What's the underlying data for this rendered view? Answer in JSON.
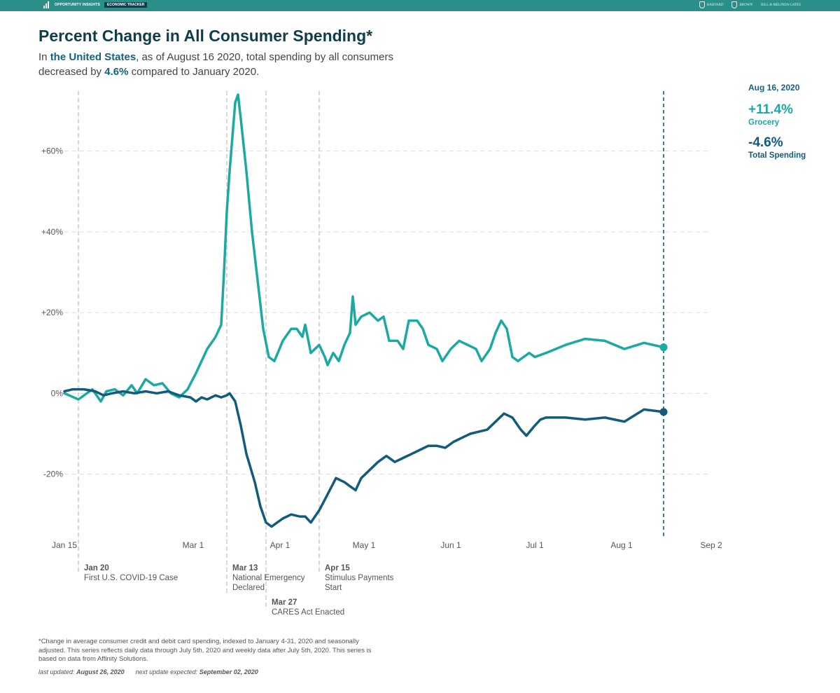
{
  "header": {
    "brand_name": "OPPORTUNITY INSIGHTS",
    "brand_tag": "ECONOMIC TRACKER",
    "partners": [
      "HARVARD",
      "BROWN",
      "BILL & MELINDA GATES"
    ]
  },
  "title": "Percent Change in All Consumer Spending*",
  "subtitle": {
    "p1": "In ",
    "location": "the United States",
    "p2": ", as of August 16 2020, total spending by all consumers decreased by ",
    "value": "4.6%",
    "p3": " compared to January 2020."
  },
  "side_panel": {
    "date": "Aug 16, 2020",
    "grocery_value": "+11.4%",
    "grocery_label": "Grocery",
    "total_value": "-4.6%",
    "total_label": "Total Spending"
  },
  "events": [
    {
      "date": "Jan 20",
      "label": "First U.S. COVID-19 Case"
    },
    {
      "date": "Mar 13",
      "label": "National Emergency\nDeclared"
    },
    {
      "date": "Mar 27",
      "label": "CARES Act Enacted"
    },
    {
      "date": "Apr 15",
      "label": "Stimulus Payments\nStart"
    }
  ],
  "footnote": "*Change in average consumer credit and debit card spending, indexed to January 4-31, 2020 and seasonally adjusted. This series reflects daily data through July 5th, 2020 and weekly data after July 5th, 2020. This series is based on data from Affinity Solutions.",
  "updates": {
    "last_label": "last updated:",
    "last_date": "August 26, 2020",
    "next_label": "next update expected:",
    "next_date": "September 02, 2020"
  },
  "colors": {
    "grocery": "#1baaa2",
    "total": "#125b7c",
    "brand_bar": "#2a8f89",
    "title": "#0f3d4c"
  },
  "chart_data": {
    "type": "line",
    "x_axis": {
      "start": "2020-01-15",
      "end": "2020-09-02",
      "ticks": [
        "2020-01-15",
        "2020-03-01",
        "2020-04-01",
        "2020-05-01",
        "2020-06-01",
        "2020-07-01",
        "2020-08-01",
        "2020-09-02"
      ],
      "tick_labels": [
        "Jan 15",
        "Mar 1",
        "Apr 1",
        "May 1",
        "Jun 1",
        "Jul 1",
        "Aug 1",
        "Sep 2"
      ]
    },
    "y_axis": {
      "range": [
        -35,
        74
      ],
      "ticks": [
        60,
        40,
        20,
        0,
        -20
      ],
      "tick_labels": [
        "+60%",
        "+40%",
        "+20%",
        "0%",
        "-20%"
      ]
    },
    "grid": "horizontal-dashed",
    "event_lines": [
      "2020-01-20",
      "2020-03-13",
      "2020-03-27",
      "2020-04-15"
    ],
    "marker_line": "2020-08-16",
    "series": [
      {
        "name": "Grocery",
        "color": "#1baaa2",
        "points": [
          [
            "2020-01-15",
            0
          ],
          [
            "2020-01-20",
            -1.5
          ],
          [
            "2020-01-25",
            1
          ],
          [
            "2020-01-28",
            -2
          ],
          [
            "2020-01-30",
            0.5
          ],
          [
            "2020-02-02",
            1
          ],
          [
            "2020-02-05",
            -0.5
          ],
          [
            "2020-02-08",
            2
          ],
          [
            "2020-02-10",
            0
          ],
          [
            "2020-02-13",
            3.5
          ],
          [
            "2020-02-16",
            2
          ],
          [
            "2020-02-19",
            2.5
          ],
          [
            "2020-02-22",
            0
          ],
          [
            "2020-02-25",
            -1
          ],
          [
            "2020-02-28",
            1
          ],
          [
            "2020-03-02",
            5
          ],
          [
            "2020-03-04",
            8
          ],
          [
            "2020-03-06",
            11
          ],
          [
            "2020-03-09",
            14
          ],
          [
            "2020-03-11",
            17
          ],
          [
            "2020-03-12",
            30
          ],
          [
            "2020-03-13",
            45
          ],
          [
            "2020-03-14",
            55
          ],
          [
            "2020-03-16",
            72
          ],
          [
            "2020-03-17",
            74
          ],
          [
            "2020-03-18",
            68
          ],
          [
            "2020-03-20",
            55
          ],
          [
            "2020-03-22",
            40
          ],
          [
            "2020-03-24",
            28
          ],
          [
            "2020-03-26",
            16
          ],
          [
            "2020-03-28",
            9
          ],
          [
            "2020-03-30",
            8
          ],
          [
            "2020-04-02",
            13
          ],
          [
            "2020-04-05",
            16
          ],
          [
            "2020-04-07",
            16
          ],
          [
            "2020-04-09",
            14
          ],
          [
            "2020-04-10",
            17
          ],
          [
            "2020-04-12",
            10
          ],
          [
            "2020-04-15",
            12
          ],
          [
            "2020-04-17",
            9
          ],
          [
            "2020-04-18",
            7
          ],
          [
            "2020-04-20",
            10
          ],
          [
            "2020-04-22",
            8
          ],
          [
            "2020-04-24",
            12
          ],
          [
            "2020-04-26",
            15
          ],
          [
            "2020-04-27",
            24
          ],
          [
            "2020-04-28",
            17
          ],
          [
            "2020-04-30",
            19
          ],
          [
            "2020-05-03",
            20
          ],
          [
            "2020-05-06",
            18
          ],
          [
            "2020-05-08",
            19
          ],
          [
            "2020-05-10",
            13
          ],
          [
            "2020-05-13",
            13
          ],
          [
            "2020-05-15",
            11
          ],
          [
            "2020-05-17",
            18
          ],
          [
            "2020-05-20",
            18
          ],
          [
            "2020-05-22",
            16
          ],
          [
            "2020-05-24",
            12
          ],
          [
            "2020-05-27",
            11
          ],
          [
            "2020-05-29",
            8
          ],
          [
            "2020-06-01",
            11
          ],
          [
            "2020-06-04",
            13
          ],
          [
            "2020-06-07",
            12
          ],
          [
            "2020-06-10",
            11
          ],
          [
            "2020-06-12",
            8
          ],
          [
            "2020-06-15",
            11
          ],
          [
            "2020-06-17",
            15
          ],
          [
            "2020-06-19",
            18
          ],
          [
            "2020-06-21",
            16
          ],
          [
            "2020-06-23",
            9
          ],
          [
            "2020-06-25",
            8
          ],
          [
            "2020-06-27",
            9
          ],
          [
            "2020-06-29",
            10
          ],
          [
            "2020-07-01",
            9
          ],
          [
            "2020-07-05",
            10
          ],
          [
            "2020-07-12",
            12
          ],
          [
            "2020-07-19",
            13.5
          ],
          [
            "2020-07-26",
            13
          ],
          [
            "2020-08-02",
            11
          ],
          [
            "2020-08-09",
            12.5
          ],
          [
            "2020-08-16",
            11.4
          ]
        ]
      },
      {
        "name": "Total Spending",
        "color": "#125b7c",
        "points": [
          [
            "2020-01-15",
            0.5
          ],
          [
            "2020-01-18",
            1
          ],
          [
            "2020-01-22",
            1
          ],
          [
            "2020-01-26",
            0.5
          ],
          [
            "2020-01-29",
            -0.5
          ],
          [
            "2020-02-01",
            0
          ],
          [
            "2020-02-05",
            0.5
          ],
          [
            "2020-02-09",
            0
          ],
          [
            "2020-02-13",
            0.5
          ],
          [
            "2020-02-17",
            0
          ],
          [
            "2020-02-21",
            0.5
          ],
          [
            "2020-02-25",
            -0.5
          ],
          [
            "2020-02-29",
            -1
          ],
          [
            "2020-03-02",
            -2
          ],
          [
            "2020-03-04",
            -1
          ],
          [
            "2020-03-06",
            -1.5
          ],
          [
            "2020-03-09",
            -0.5
          ],
          [
            "2020-03-11",
            -1
          ],
          [
            "2020-03-13",
            -0.5
          ],
          [
            "2020-03-14",
            0
          ],
          [
            "2020-03-16",
            -2
          ],
          [
            "2020-03-18",
            -8
          ],
          [
            "2020-03-20",
            -15
          ],
          [
            "2020-03-23",
            -22
          ],
          [
            "2020-03-25",
            -28
          ],
          [
            "2020-03-27",
            -32
          ],
          [
            "2020-03-29",
            -33
          ],
          [
            "2020-03-31",
            -32
          ],
          [
            "2020-04-02",
            -31
          ],
          [
            "2020-04-05",
            -30
          ],
          [
            "2020-04-08",
            -30.5
          ],
          [
            "2020-04-10",
            -30.5
          ],
          [
            "2020-04-12",
            -32
          ],
          [
            "2020-04-15",
            -29
          ],
          [
            "2020-04-18",
            -25
          ],
          [
            "2020-04-21",
            -21
          ],
          [
            "2020-04-24",
            -22
          ],
          [
            "2020-04-26",
            -23
          ],
          [
            "2020-04-28",
            -24
          ],
          [
            "2020-04-30",
            -21
          ],
          [
            "2020-05-03",
            -19
          ],
          [
            "2020-05-06",
            -17
          ],
          [
            "2020-05-09",
            -15.5
          ],
          [
            "2020-05-12",
            -17
          ],
          [
            "2020-05-15",
            -16
          ],
          [
            "2020-05-18",
            -15
          ],
          [
            "2020-05-21",
            -14
          ],
          [
            "2020-05-24",
            -13
          ],
          [
            "2020-05-27",
            -13
          ],
          [
            "2020-05-30",
            -13.5
          ],
          [
            "2020-06-02",
            -12
          ],
          [
            "2020-06-05",
            -11
          ],
          [
            "2020-06-08",
            -10
          ],
          [
            "2020-06-11",
            -9.5
          ],
          [
            "2020-06-14",
            -9
          ],
          [
            "2020-06-17",
            -7
          ],
          [
            "2020-06-20",
            -5
          ],
          [
            "2020-06-23",
            -6
          ],
          [
            "2020-06-26",
            -9
          ],
          [
            "2020-06-28",
            -10.5
          ],
          [
            "2020-07-01",
            -8
          ],
          [
            "2020-07-03",
            -6.5
          ],
          [
            "2020-07-05",
            -6
          ],
          [
            "2020-07-12",
            -6
          ],
          [
            "2020-07-19",
            -6.5
          ],
          [
            "2020-07-26",
            -6
          ],
          [
            "2020-08-02",
            -7
          ],
          [
            "2020-08-09",
            -4
          ],
          [
            "2020-08-16",
            -4.6
          ]
        ]
      }
    ]
  }
}
